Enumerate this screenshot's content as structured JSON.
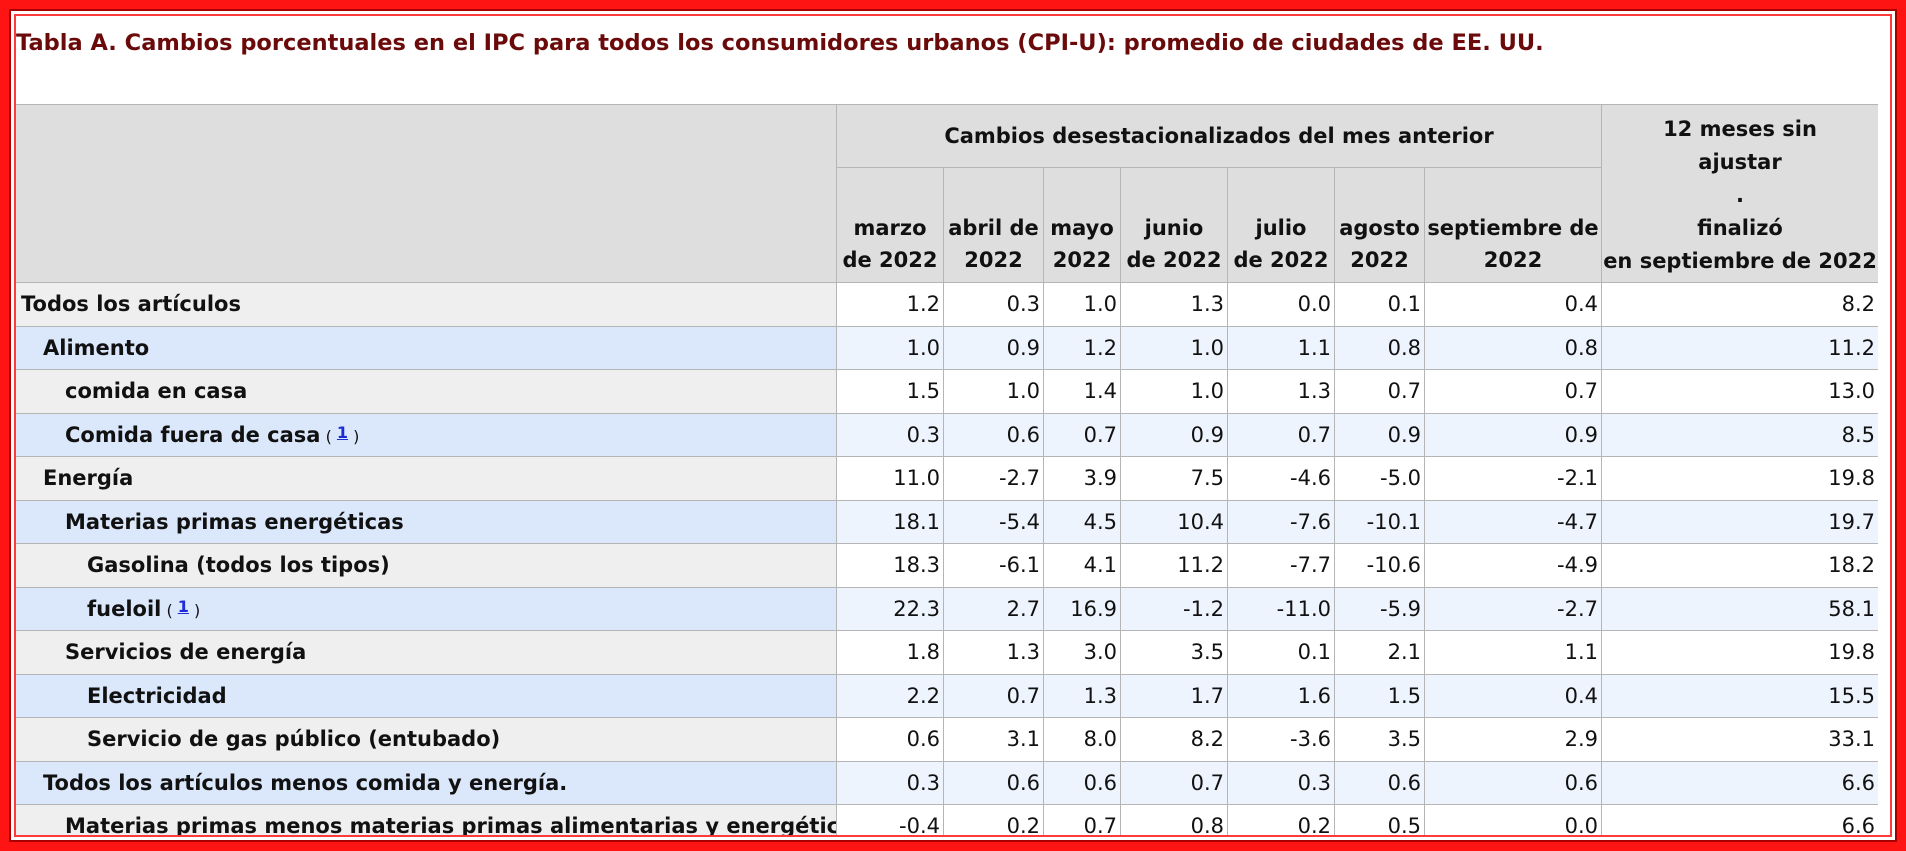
{
  "title": "Tabla A. Cambios porcentuales en el IPC para todos los consumidores urbanos (CPI-U): promedio de ciudades de EE. UU.",
  "header": {
    "group_label": "Cambios desestacionalizados del mes anterior",
    "annual": {
      "line1": "12 meses sin",
      "line2": "ajustar",
      "line3": ".",
      "line4": "finalizó",
      "line5": "en septiembre de 2022"
    },
    "months": [
      {
        "l1": "marzo",
        "l2": "de 2022"
      },
      {
        "l1": "abril de",
        "l2": "2022"
      },
      {
        "l1": "mayo",
        "l2": "2022"
      },
      {
        "l1": "junio",
        "l2": "de 2022"
      },
      {
        "l1": "julio",
        "l2": "de 2022"
      },
      {
        "l1": "agosto",
        "l2": "2022"
      },
      {
        "l1": "septiembre de",
        "l2": "2022"
      }
    ]
  },
  "rows": [
    {
      "label": "Todos los artículos",
      "level": 0,
      "values": [
        "1.2",
        "0.3",
        "1.0",
        "1.3",
        "0.0",
        "0.1",
        "0.4",
        "8.2"
      ]
    },
    {
      "label": "Alimento",
      "level": 1,
      "values": [
        "1.0",
        "0.9",
        "1.2",
        "1.0",
        "1.1",
        "0.8",
        "0.8",
        "11.2"
      ]
    },
    {
      "label": "comida en casa",
      "level": 2,
      "values": [
        "1.5",
        "1.0",
        "1.4",
        "1.0",
        "1.3",
        "0.7",
        "0.7",
        "13.0"
      ]
    },
    {
      "label": "Comida fuera de casa",
      "level": 2,
      "footnote": "1",
      "values": [
        "0.3",
        "0.6",
        "0.7",
        "0.9",
        "0.7",
        "0.9",
        "0.9",
        "8.5"
      ]
    },
    {
      "label": "Energía",
      "level": 1,
      "values": [
        "11.0",
        "-2.7",
        "3.9",
        "7.5",
        "-4.6",
        "-5.0",
        "-2.1",
        "19.8"
      ]
    },
    {
      "label": "Materias primas energéticas",
      "level": 2,
      "values": [
        "18.1",
        "-5.4",
        "4.5",
        "10.4",
        "-7.6",
        "-10.1",
        "-4.7",
        "19.7"
      ]
    },
    {
      "label": "Gasolina (todos los tipos)",
      "level": 3,
      "values": [
        "18.3",
        "-6.1",
        "4.1",
        "11.2",
        "-7.7",
        "-10.6",
        "-4.9",
        "18.2"
      ]
    },
    {
      "label": "fueloil",
      "level": 3,
      "footnote": "1",
      "values": [
        "22.3",
        "2.7",
        "16.9",
        "-1.2",
        "-11.0",
        "-5.9",
        "-2.7",
        "58.1"
      ]
    },
    {
      "label": "Servicios de energía",
      "level": 2,
      "values": [
        "1.8",
        "1.3",
        "3.0",
        "3.5",
        "0.1",
        "2.1",
        "1.1",
        "19.8"
      ]
    },
    {
      "label": "Electricidad",
      "level": 3,
      "values": [
        "2.2",
        "0.7",
        "1.3",
        "1.7",
        "1.6",
        "1.5",
        "0.4",
        "15.5"
      ]
    },
    {
      "label": "Servicio de gas público (entubado)",
      "level": 3,
      "values": [
        "0.6",
        "3.1",
        "8.0",
        "8.2",
        "-3.6",
        "3.5",
        "2.9",
        "33.1"
      ]
    },
    {
      "label": "Todos los artículos menos comida y energía.",
      "level": 1,
      "values": [
        "0.3",
        "0.6",
        "0.6",
        "0.7",
        "0.3",
        "0.6",
        "0.6",
        "6.6"
      ]
    },
    {
      "label": "Materias primas menos materias primas alimentarias y energéticas",
      "level": 2,
      "values": [
        "-0.4",
        "0.2",
        "0.7",
        "0.8",
        "0.2",
        "0.5",
        "0.0",
        "6.6"
      ]
    }
  ]
}
